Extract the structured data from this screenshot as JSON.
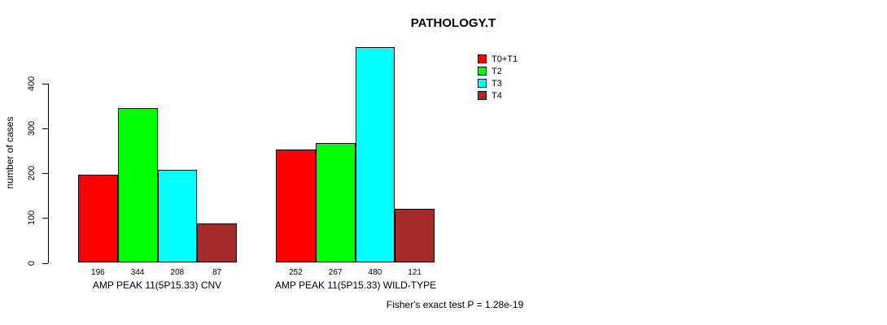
{
  "chart_data": {
    "type": "bar",
    "title": "PATHOLOGY.T",
    "ylabel": "number of cases",
    "xlabel": "",
    "categories": [
      "AMP PEAK 11(5P15.33) CNV",
      "AMP PEAK 11(5P15.33) WILD-TYPE"
    ],
    "series": [
      {
        "name": "T0+T1",
        "color": "#ff0000",
        "values": [
          196,
          252
        ]
      },
      {
        "name": "T2",
        "color": "#00ff00",
        "values": [
          344,
          267
        ]
      },
      {
        "name": "T3",
        "color": "#00ffff",
        "values": [
          208,
          480
        ]
      },
      {
        "name": "T4",
        "color": "#a52a2a",
        "values": [
          87,
          121
        ]
      }
    ],
    "bar_value_labels": [
      [
        196,
        344,
        208,
        87
      ],
      [
        252,
        267,
        480,
        121
      ]
    ],
    "y_ticks": [
      0,
      100,
      200,
      300,
      400
    ],
    "ylim": [
      0,
      400
    ],
    "grid": false,
    "legend_position": "top-right",
    "annotation": "Fisher's exact test P = 1.28e-19",
    "background_color": "#ffffff",
    "axis_color": "#000000"
  }
}
